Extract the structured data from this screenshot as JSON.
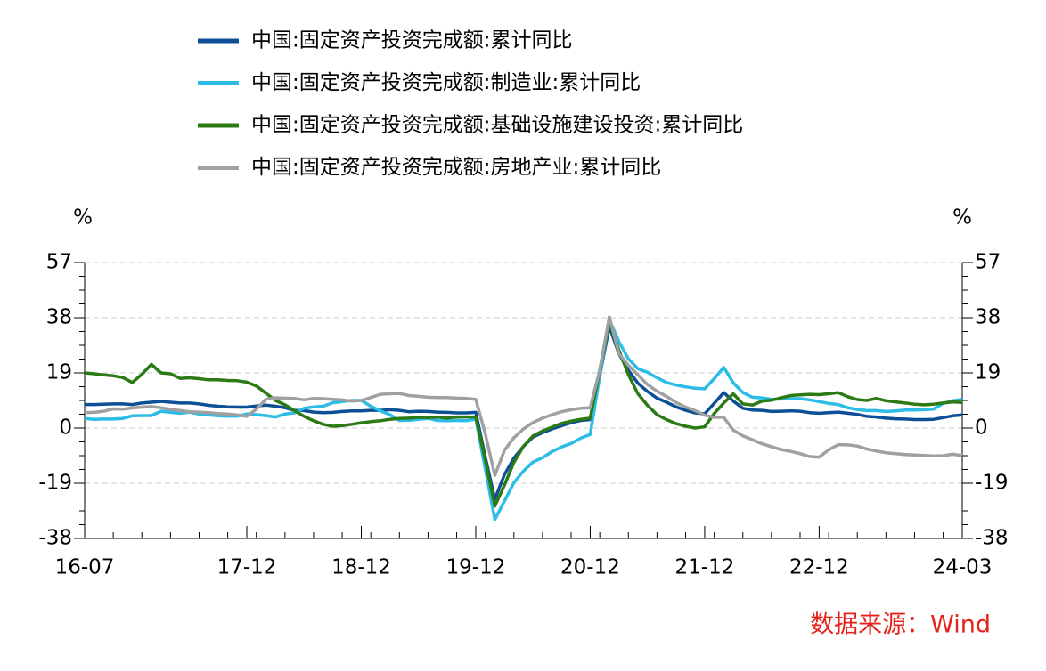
{
  "chart_data": {
    "type": "line",
    "categories": [
      "16-07",
      null,
      null,
      null,
      null,
      null,
      null,
      null,
      null,
      null,
      null,
      null,
      null,
      null,
      null,
      null,
      null,
      "17-12",
      null,
      null,
      null,
      null,
      null,
      null,
      null,
      null,
      null,
      null,
      null,
      "18-12",
      null,
      null,
      null,
      null,
      null,
      null,
      null,
      null,
      null,
      null,
      null,
      "19-12",
      null,
      null,
      null,
      null,
      null,
      null,
      null,
      null,
      null,
      null,
      null,
      "20-12",
      null,
      null,
      null,
      null,
      null,
      null,
      null,
      null,
      null,
      null,
      null,
      "21-12",
      null,
      null,
      null,
      null,
      null,
      null,
      null,
      null,
      null,
      null,
      null,
      "22-12",
      null,
      null,
      null,
      null,
      null,
      null,
      null,
      null,
      null,
      null,
      null,
      null,
      null,
      null,
      "24-03"
    ],
    "series": [
      {
        "name": "中国:固定资产投资完成额:累计同比",
        "color": "#0d4f96",
        "values": [
          8.1,
          8.1,
          8.2,
          8.3,
          8.3,
          8.1,
          8.6,
          8.9,
          9.2,
          8.9,
          8.6,
          8.6,
          8.3,
          7.8,
          7.5,
          7.3,
          7.2,
          7.2,
          7.6,
          7.9,
          7.5,
          7.0,
          6.1,
          6.0,
          5.5,
          5.3,
          5.4,
          5.7,
          5.9,
          5.9,
          6.1,
          6.1,
          6.3,
          6.1,
          5.6,
          5.8,
          5.7,
          5.5,
          5.4,
          5.2,
          5.2,
          5.4,
          -10,
          -24.5,
          -16.1,
          -10.3,
          -6.3,
          -3.1,
          -1.6,
          -0.3,
          0.8,
          1.8,
          2.6,
          2.9,
          18,
          35.0,
          25.6,
          19.9,
          15.4,
          12.6,
          10.3,
          8.9,
          7.3,
          6.1,
          5.2,
          4.9,
          8.5,
          12.2,
          9.3,
          6.8,
          6.2,
          6.1,
          5.7,
          5.8,
          5.9,
          5.8,
          5.3,
          5.1,
          5.3,
          5.5,
          5.1,
          4.7,
          4.0,
          3.8,
          3.4,
          3.2,
          3.1,
          2.9,
          2.9,
          3.0,
          3.6,
          4.2,
          4.5
        ]
      },
      {
        "name": "中国:固定资产投资完成额:制造业:累计同比",
        "color": "#2bbde5",
        "values": [
          3.3,
          3.0,
          3.1,
          3.1,
          3.3,
          4.2,
          4.3,
          4.3,
          5.8,
          5.4,
          5.1,
          5.5,
          4.8,
          4.5,
          4.2,
          4.1,
          4.1,
          4.8,
          4.6,
          4.3,
          3.8,
          4.8,
          5.2,
          6.8,
          7.3,
          7.5,
          8.7,
          9.1,
          9.5,
          9.5,
          7.5,
          5.9,
          4.6,
          2.6,
          2.7,
          3.0,
          3.3,
          2.6,
          2.5,
          2.6,
          2.5,
          3.1,
          -14,
          -31.5,
          -25.2,
          -18.8,
          -14.8,
          -11.7,
          -10.2,
          -8.1,
          -6.5,
          -5.3,
          -3.5,
          -2.2,
          18,
          37.3,
          29.8,
          23.8,
          20.4,
          19.2,
          17.3,
          15.7,
          14.8,
          14.2,
          13.7,
          13.5,
          17,
          20.9,
          15.6,
          12.2,
          10.6,
          10.4,
          9.9,
          10.0,
          10.1,
          10.1,
          9.7,
          9.1,
          8.5,
          8.1,
          7.0,
          6.4,
          6.0,
          6.0,
          5.7,
          5.9,
          6.2,
          6.2,
          6.3,
          6.5,
          8.5,
          9.4,
          9.9
        ]
      },
      {
        "name": "中国:固定资产投资完成额:基础设施建设投资:累计同比",
        "color": "#2b7a14",
        "values": [
          19.0,
          18.7,
          18.3,
          18.0,
          17.4,
          15.7,
          18.5,
          21.9,
          19.0,
          18.7,
          17.1,
          17.3,
          17.0,
          16.6,
          16.6,
          16.4,
          16.3,
          15.8,
          14.5,
          12.0,
          9.5,
          8.0,
          6.0,
          4.0,
          2.5,
          1.3,
          0.6,
          0.8,
          1.3,
          1.8,
          2.2,
          2.5,
          3.0,
          3.3,
          3.4,
          3.7,
          3.6,
          3.8,
          3.4,
          3.8,
          3.8,
          3.8,
          -11,
          -26.9,
          -19.7,
          -11.8,
          -6.3,
          -2.7,
          -1.0,
          0.3,
          1.6,
          2.4,
          3.0,
          3.4,
          20,
          36.6,
          26.8,
          18.4,
          11.8,
          7.8,
          4.6,
          2.9,
          1.5,
          0.6,
          0.0,
          0.4,
          5,
          8.6,
          11.8,
          8.3,
          7.9,
          9.3,
          9.6,
          10.4,
          11.2,
          11.4,
          11.6,
          11.5,
          11.8,
          12.2,
          10.8,
          9.8,
          9.5,
          10.2,
          9.4,
          9.0,
          8.6,
          8.2,
          8.0,
          8.2,
          8.6,
          9.0,
          8.8
        ]
      },
      {
        "name": "中国:固定资产投资完成额:房地产业:累计同比",
        "color": "#a0a0a0",
        "values": [
          5.3,
          5.4,
          5.8,
          6.6,
          6.5,
          6.9,
          7.2,
          7.4,
          7.0,
          6.4,
          6.0,
          5.6,
          5.5,
          5.3,
          5.0,
          4.8,
          4.5,
          4.0,
          6.5,
          9.9,
          10.4,
          10.3,
          10.2,
          9.7,
          10.2,
          10.1,
          9.9,
          9.7,
          9.3,
          9.5,
          10.5,
          11.6,
          11.8,
          11.9,
          11.2,
          10.9,
          10.6,
          10.5,
          10.5,
          10.3,
          10.2,
          9.9,
          -2,
          -16.3,
          -7.7,
          -3.3,
          -0.3,
          1.9,
          3.4,
          4.6,
          5.6,
          6.3,
          6.8,
          7.0,
          20,
          38.3,
          25.6,
          21.6,
          18.3,
          15.0,
          12.7,
          10.9,
          8.8,
          7.2,
          6.0,
          4.4,
          3.7,
          3.7,
          -0.7,
          -2.7,
          -4.0,
          -5.4,
          -6.4,
          -7.4,
          -8.0,
          -8.8,
          -9.8,
          -10.0,
          -7.5,
          -5.7,
          -5.8,
          -6.2,
          -7.2,
          -7.9,
          -8.5,
          -8.8,
          -9.1,
          -9.3,
          -9.4,
          -9.6,
          -9.5,
          -9.0,
          -9.5
        ]
      }
    ],
    "y_unit": "%",
    "y2_unit": "%",
    "ylim": [
      -38,
      57
    ],
    "yticks": [
      -38,
      -19,
      0,
      19,
      38,
      57
    ],
    "y2lim": [
      -38,
      57
    ],
    "y2ticks": [
      -38,
      -19,
      0,
      19,
      38,
      57
    ],
    "grid": true,
    "source": "数据来源：Wind",
    "source_color": "#e5231b"
  }
}
